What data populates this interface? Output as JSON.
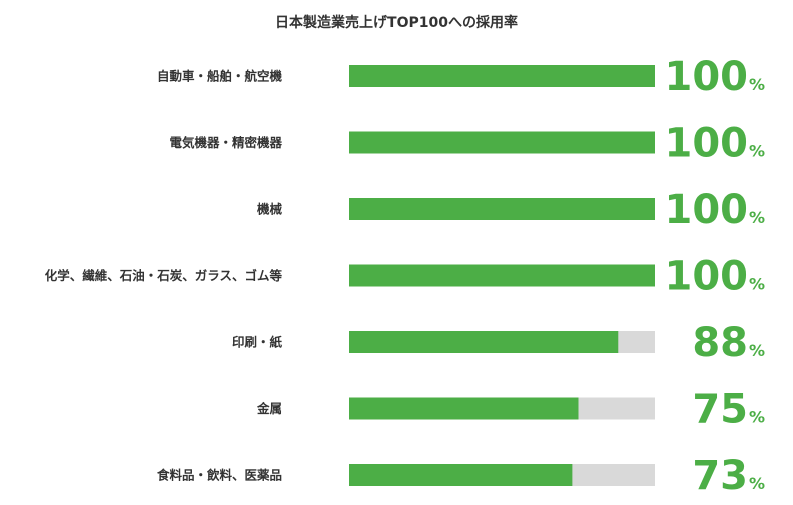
{
  "chart_data": {
    "type": "bar",
    "orientation": "horizontal",
    "title": "日本製造業売上げTOP100への採用率",
    "categories": [
      "自動車・船舶・航空機",
      "電気機器・精密機器",
      "機械",
      "化学、繊維、石油・石炭、ガラス、ゴム等",
      "印刷・紙",
      "金属",
      "食料品・飲料、医薬品"
    ],
    "values": [
      100,
      100,
      100,
      100,
      88,
      75,
      73
    ],
    "value_unit": "%",
    "xlim": [
      0,
      100
    ],
    "grid": false,
    "legend": "none",
    "colors": {
      "bar": "#4cae46",
      "track": "#d9d9d9",
      "value_text": "#4cae46",
      "label_text": "#333333"
    }
  }
}
